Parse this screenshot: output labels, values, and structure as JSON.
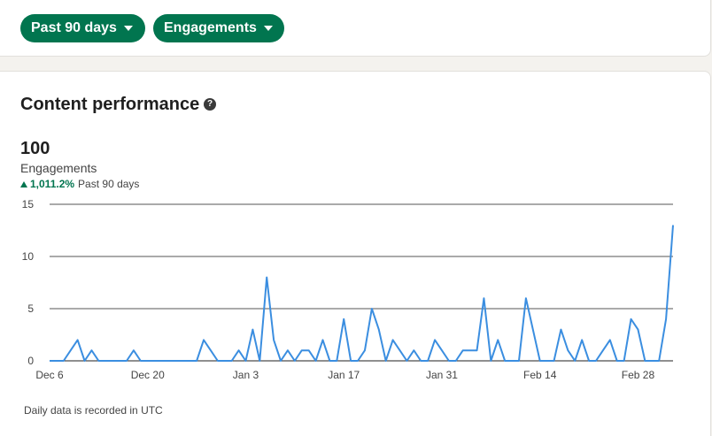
{
  "filters": {
    "range_label": "Past 90 days",
    "metric_label": "Engagements"
  },
  "card": {
    "title": "Content performance",
    "help_icon": "question-circle-icon",
    "total": "100",
    "metric": "Engagements",
    "change_pct": "1,011.2%",
    "change_period": "Past 90 days",
    "footnote": "Daily data is recorded in UTC"
  },
  "colors": {
    "accent": "#01754f",
    "line": "#3b8ee0"
  },
  "chart_data": {
    "type": "line",
    "title": "",
    "xlabel": "",
    "ylabel": "",
    "ylim": [
      0,
      15
    ],
    "yticks": [
      0,
      5,
      10,
      15
    ],
    "xtick_labels": [
      "Dec 6",
      "Dec 20",
      "Jan 3",
      "Jan 17",
      "Jan 31",
      "Feb 14",
      "Feb 28"
    ],
    "xtick_day_index": [
      0,
      14,
      28,
      42,
      56,
      70,
      84
    ],
    "grid": true,
    "legend": "none",
    "series": [
      {
        "values": [
          0,
          0,
          0,
          1,
          2,
          0,
          1,
          0,
          0,
          0,
          0,
          0,
          1,
          0,
          0,
          0,
          0,
          0,
          0,
          0,
          0,
          0,
          2,
          1,
          0,
          0,
          0,
          1,
          0,
          3,
          0,
          8,
          2,
          0,
          1,
          0,
          1,
          1,
          0,
          2,
          0,
          0,
          4,
          0,
          0,
          1,
          5,
          3,
          0,
          2,
          1,
          0,
          1,
          0,
          0,
          2,
          1,
          0,
          0,
          1,
          1,
          1,
          6,
          0,
          2,
          0,
          0,
          0,
          6,
          3,
          0,
          0,
          0,
          3,
          1,
          0,
          2,
          0,
          0,
          1,
          2,
          0,
          0,
          4,
          3,
          0,
          0,
          0,
          4,
          13
        ]
      }
    ]
  }
}
